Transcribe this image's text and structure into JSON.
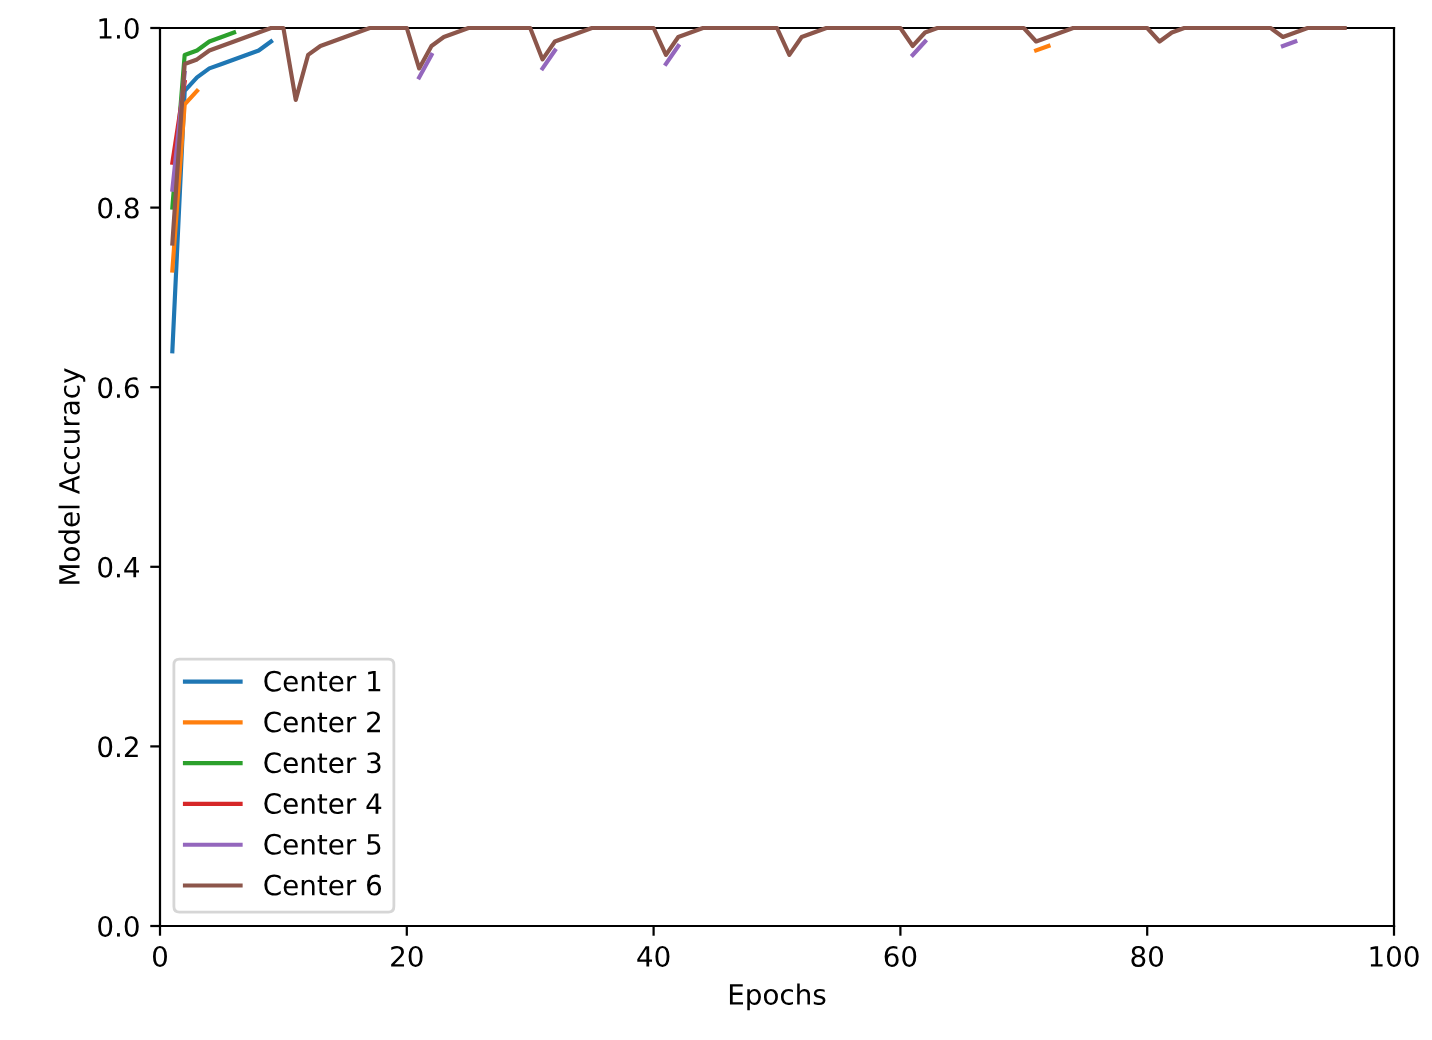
{
  "chart_data": {
    "type": "line",
    "xlabel": "Epochs",
    "ylabel": "Model Accuracy",
    "x": [
      1,
      2,
      3,
      4,
      5,
      6,
      7,
      8,
      9,
      10,
      11,
      12,
      13,
      14,
      15,
      16,
      17,
      18,
      19,
      20,
      21,
      22,
      23,
      24,
      25,
      26,
      27,
      28,
      29,
      30,
      31,
      32,
      33,
      34,
      35,
      36,
      37,
      38,
      39,
      40,
      41,
      42,
      43,
      44,
      45,
      46,
      47,
      48,
      49,
      50,
      51,
      52,
      53,
      54,
      55,
      56,
      57,
      58,
      59,
      60,
      61,
      62,
      63,
      64,
      65,
      66,
      67,
      68,
      69,
      70,
      71,
      72,
      73,
      74,
      75,
      76,
      77,
      78,
      79,
      80,
      81,
      82,
      83,
      84,
      85,
      86,
      87,
      88,
      89,
      90,
      91,
      92,
      93,
      94,
      95,
      96
    ],
    "series": [
      {
        "name": "Center 1",
        "color": "#1f77b4",
        "x": [
          1,
          2,
          3,
          4,
          5,
          6,
          7,
          8,
          9
        ],
        "values": [
          0.64,
          0.93,
          0.945,
          0.955,
          0.96,
          0.965,
          0.97,
          0.975,
          0.985
        ]
      },
      {
        "name": "Center 2",
        "color": "#ff7f0e",
        "x": [
          1,
          2,
          3,
          50,
          71,
          72
        ],
        "values": [
          0.73,
          0.915,
          0.93,
          null,
          0.975,
          0.98
        ]
      },
      {
        "name": "Center 3",
        "color": "#2ca02c",
        "x": [
          1,
          2,
          3,
          4,
          5,
          6
        ],
        "values": [
          0.8,
          0.97,
          0.975,
          0.985,
          0.99,
          0.995
        ]
      },
      {
        "name": "Center 4",
        "color": "#d62728",
        "x": [
          1,
          2
        ],
        "values": [
          0.85,
          0.94
        ]
      },
      {
        "name": "Center 5",
        "color": "#9467bd",
        "x": [
          1,
          2,
          11,
          21,
          22,
          26,
          31,
          32,
          36,
          41,
          42,
          50,
          61,
          62,
          80,
          91,
          92
        ],
        "values": [
          0.82,
          0.95,
          null,
          0.945,
          0.97,
          null,
          0.955,
          0.975,
          null,
          0.96,
          0.98,
          null,
          0.97,
          0.985,
          null,
          0.98,
          0.985
        ]
      },
      {
        "name": "Center 6",
        "color": "#8c564b",
        "values": [
          0.76,
          0.96,
          0.965,
          0.975,
          0.98,
          0.985,
          0.99,
          0.995,
          1,
          1,
          0.92,
          0.97,
          0.98,
          0.985,
          0.99,
          0.995,
          1,
          1,
          1,
          1,
          0.955,
          0.98,
          0.99,
          0.995,
          1,
          1,
          1,
          1,
          1,
          1,
          0.965,
          0.985,
          0.99,
          0.995,
          1,
          1,
          1,
          1,
          1,
          1,
          0.97,
          0.99,
          0.995,
          1,
          1,
          1,
          1,
          1,
          1,
          1,
          0.97,
          0.99,
          0.995,
          1,
          1,
          1,
          1,
          1,
          1,
          1,
          0.98,
          0.995,
          1,
          1,
          1,
          1,
          1,
          1,
          1,
          1,
          0.985,
          0.99,
          0.995,
          1,
          1,
          1,
          1,
          1,
          1,
          1,
          0.985,
          0.995,
          1,
          1,
          1,
          1,
          1,
          1,
          1,
          1,
          0.99,
          0.995,
          1,
          1,
          1,
          1
        ]
      }
    ],
    "xlim": [
      0,
      100
    ],
    "xticks": [
      0,
      20,
      40,
      60,
      80,
      100
    ],
    "ylim": [
      0.0,
      1.0
    ],
    "yticks": [
      {
        "value": 0.0,
        "label": "0.0"
      },
      {
        "value": 0.2,
        "label": "0.2"
      },
      {
        "value": 0.4,
        "label": "0.4"
      },
      {
        "value": 0.6,
        "label": "0.6"
      },
      {
        "value": 0.8,
        "label": "0.8"
      },
      {
        "value": 1.0,
        "label": "1.0"
      }
    ],
    "legend": "bottom left",
    "grid": false
  }
}
